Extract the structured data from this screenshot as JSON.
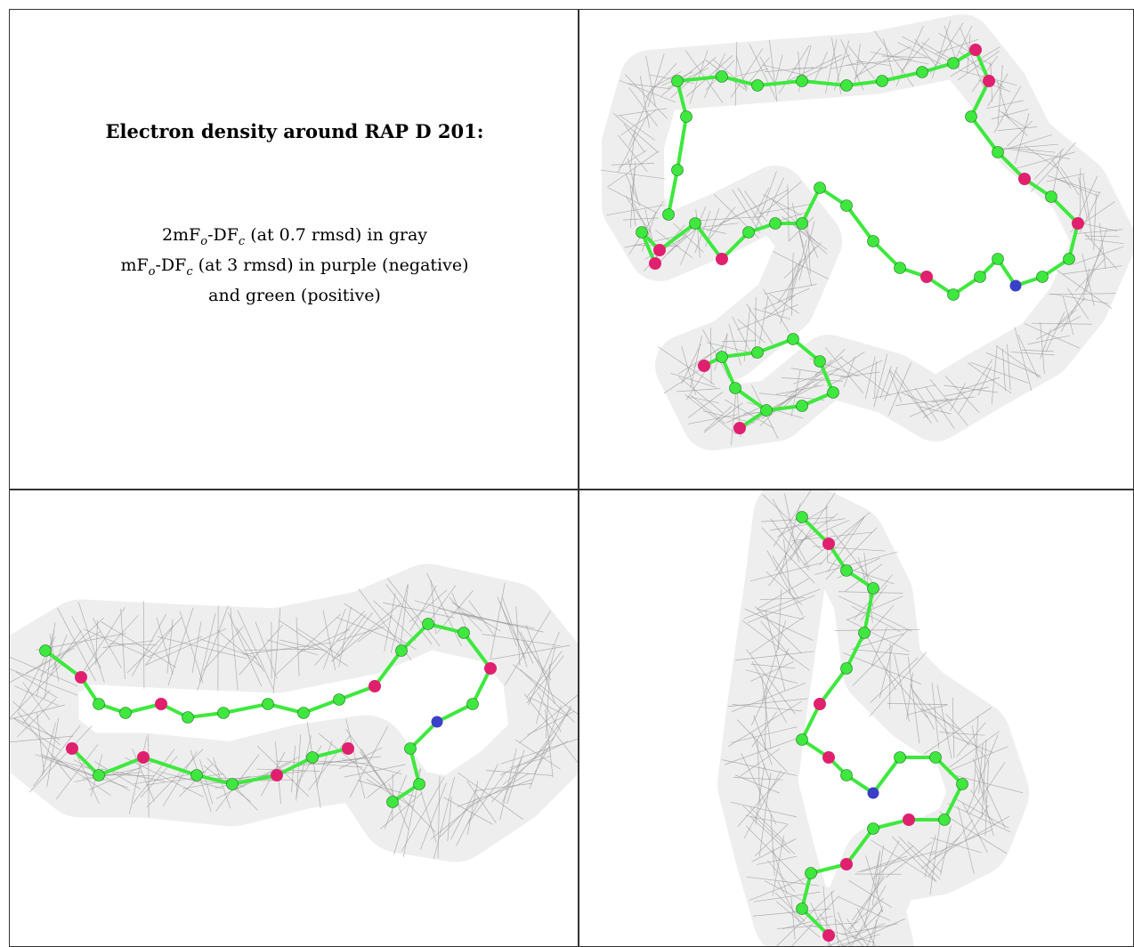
{
  "figure": {
    "title": "Electron density around RAP D 201:",
    "legend_lines": [
      {
        "prefix": "2mF",
        "sub1": "o",
        "mid": "-DF",
        "sub2": "c",
        "suffix": " (at 0.7 rmsd) in gray"
      },
      {
        "prefix": "mF",
        "sub1": "o",
        "mid": "-DF",
        "sub2": "c",
        "suffix": " (at 3 rmsd) in purple (negative)"
      },
      {
        "prefix": "",
        "sub1": "",
        "mid": "",
        "sub2": "",
        "suffix": "and green (positive)"
      }
    ]
  },
  "colors": {
    "mesh": "#9a9a9a",
    "carbon": "#3ee83e",
    "oxygen": "#e0206e",
    "nitrogen": "#3a3fc8",
    "border": "#333333"
  },
  "panels": [
    {
      "view": "top-right",
      "content": "electron-density-mesh-view-1"
    },
    {
      "view": "bottom-left",
      "content": "electron-density-mesh-view-2"
    },
    {
      "view": "bottom-right",
      "content": "electron-density-mesh-view-3"
    }
  ]
}
